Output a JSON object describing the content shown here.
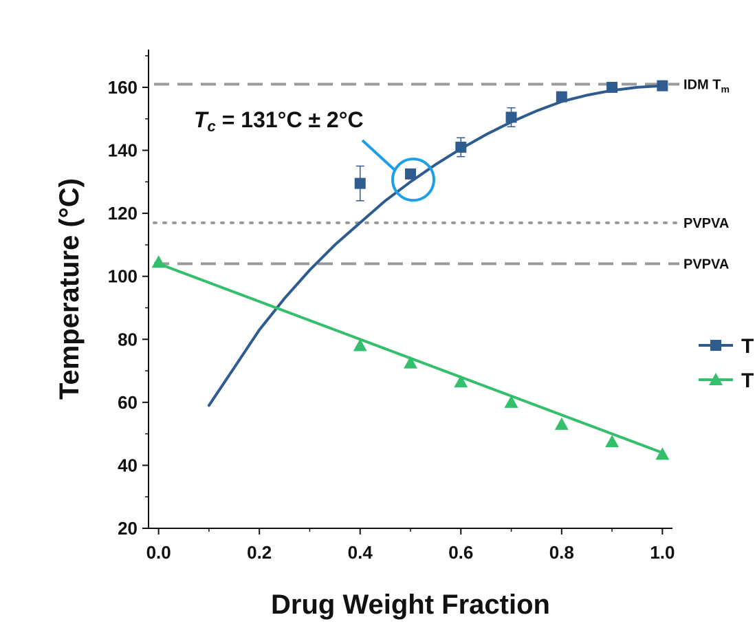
{
  "chart_data": {
    "type": "line",
    "xlabel": "Drug Weight Fraction",
    "ylabel": "Temperature (°C)",
    "xlim": [
      -0.02,
      1.02
    ],
    "ylim": [
      20,
      172
    ],
    "xticks": [
      "0.0",
      "0.2",
      "0.4",
      "0.6",
      "0.8",
      "1.0"
    ],
    "yticks": [
      "20",
      "40",
      "60",
      "80",
      "100",
      "120",
      "140",
      "160"
    ],
    "grid": false,
    "colors": {
      "tm": "#2f5c8f",
      "tg": "#33bf6b",
      "reference_lines": "#9a9a9a",
      "highlight": "#1ea0e6"
    },
    "series": [
      {
        "marker": "square",
        "color": "#2f5c8f",
        "points": [
          {
            "x": 0.4,
            "y": 129.5,
            "err": 5.5
          },
          {
            "x": 0.5,
            "y": 132.5,
            "err": 1.0
          },
          {
            "x": 0.6,
            "y": 141.0,
            "err": 3.0
          },
          {
            "x": 0.7,
            "y": 150.5,
            "err": 3.0
          },
          {
            "x": 0.8,
            "y": 157.0,
            "err": 1.0
          },
          {
            "x": 0.9,
            "y": 160.0,
            "err": 0.5
          },
          {
            "x": 1.0,
            "y": 160.5,
            "err": 0.5
          }
        ],
        "fit": [
          {
            "x": 0.1,
            "y": 59
          },
          {
            "x": 0.15,
            "y": 71
          },
          {
            "x": 0.2,
            "y": 83
          },
          {
            "x": 0.25,
            "y": 93
          },
          {
            "x": 0.3,
            "y": 102
          },
          {
            "x": 0.35,
            "y": 110
          },
          {
            "x": 0.4,
            "y": 117
          },
          {
            "x": 0.45,
            "y": 124
          },
          {
            "x": 0.5,
            "y": 130
          },
          {
            "x": 0.55,
            "y": 135.5
          },
          {
            "x": 0.6,
            "y": 140.5
          },
          {
            "x": 0.65,
            "y": 145
          },
          {
            "x": 0.7,
            "y": 149
          },
          {
            "x": 0.75,
            "y": 152.5
          },
          {
            "x": 0.8,
            "y": 155.5
          },
          {
            "x": 0.85,
            "y": 157.5
          },
          {
            "x": 0.9,
            "y": 159
          },
          {
            "x": 0.95,
            "y": 160
          },
          {
            "x": 1.0,
            "y": 160.5
          }
        ]
      },
      {
        "marker": "triangle",
        "color": "#33bf6b",
        "points": [
          {
            "x": 0.0,
            "y": 104.5
          },
          {
            "x": 0.4,
            "y": 78.0
          },
          {
            "x": 0.5,
            "y": 72.5
          },
          {
            "x": 0.6,
            "y": 66.5
          },
          {
            "x": 0.7,
            "y": 60.0
          },
          {
            "x": 0.8,
            "y": 53.0
          },
          {
            "x": 0.9,
            "y": 47.5
          },
          {
            "x": 1.0,
            "y": 43.5
          }
        ],
        "fit": [
          {
            "x": 0.0,
            "y": 104
          },
          {
            "x": 1.0,
            "y": 44
          }
        ]
      }
    ],
    "reference_lines": [
      {
        "y": 161.0,
        "style": "dashed",
        "label": "IDM T",
        "label_sub": "m"
      },
      {
        "y": 117.0,
        "style": "dotted",
        "label": "PVPVA",
        "label_sub": ""
      },
      {
        "y": 104.0,
        "style": "dashed",
        "label": "PVPVA",
        "label_sub": ""
      }
    ],
    "annotation": {
      "symbol": "T",
      "symbol_sub": "c",
      "text": " = 131°C ± 2°C",
      "target": {
        "x": 0.5,
        "y": 132
      }
    },
    "legend": {
      "placement": "right",
      "entries": [
        {
          "marker": "square",
          "color": "#2f5c8f",
          "label": "T"
        },
        {
          "marker": "triangle",
          "color": "#33bf6b",
          "label": "T"
        }
      ]
    }
  }
}
